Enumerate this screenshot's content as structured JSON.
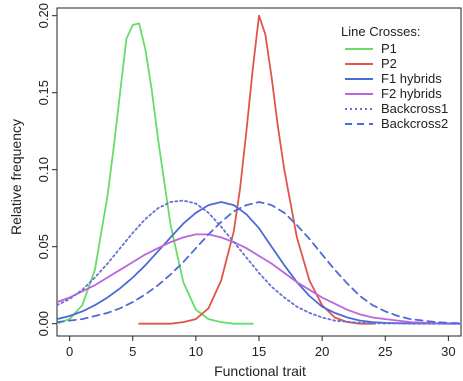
{
  "chart_data": {
    "type": "line",
    "xlabel": "Functional trait",
    "ylabel": "Relative frequency",
    "xlim": [
      -1,
      31
    ],
    "ylim": [
      -0.008,
      0.205
    ],
    "xticks": [
      0,
      5,
      10,
      15,
      20,
      25,
      30
    ],
    "xtick_labels": [
      "0",
      "5",
      "10",
      "15",
      "20",
      "25",
      "30"
    ],
    "yticks": [
      0.0,
      0.05,
      0.1,
      0.15,
      0.2
    ],
    "ytick_labels": [
      "0.00",
      "0.05",
      "0.10",
      "0.15",
      "0.20"
    ],
    "grid": false,
    "legend": {
      "title": "Line Crosses:",
      "placement": "top-right"
    },
    "series": [
      {
        "name": "P1",
        "color": "#66dd66",
        "style": "solid",
        "x": [
          -1,
          0,
          1,
          2,
          3,
          3.5,
          4,
          4.5,
          5,
          5.5,
          6,
          6.5,
          7,
          8,
          9,
          10,
          11,
          12,
          13,
          14.5
        ],
        "y": [
          0.0,
          0.003,
          0.012,
          0.035,
          0.083,
          0.115,
          0.15,
          0.185,
          0.194,
          0.195,
          0.178,
          0.152,
          0.12,
          0.064,
          0.027,
          0.009,
          0.003,
          0.001,
          0.0,
          0.0
        ]
      },
      {
        "name": "P2",
        "color": "#e0554a",
        "style": "solid",
        "x": [
          5.5,
          8,
          9,
          10,
          11,
          12,
          13,
          13.5,
          14,
          14.5,
          15,
          15.5,
          16,
          16.5,
          17,
          18,
          19,
          20,
          21,
          22,
          23,
          24.2
        ],
        "y": [
          0.0,
          0.0,
          0.001,
          0.003,
          0.01,
          0.028,
          0.06,
          0.088,
          0.125,
          0.165,
          0.2,
          0.188,
          0.16,
          0.128,
          0.1,
          0.056,
          0.028,
          0.012,
          0.004,
          0.001,
          0.0,
          0.0
        ]
      },
      {
        "name": "F1 hybrids",
        "color": "#4d6ad6",
        "style": "solid",
        "x": [
          -1,
          0,
          1,
          2,
          3,
          4,
          5,
          6,
          7,
          8,
          9,
          10,
          11,
          12,
          13,
          14,
          15,
          16,
          17,
          18,
          19,
          20,
          21,
          22,
          23,
          24,
          25,
          26,
          27,
          28,
          29,
          30,
          31
        ],
        "y": [
          0.003,
          0.005,
          0.008,
          0.012,
          0.017,
          0.023,
          0.03,
          0.038,
          0.047,
          0.056,
          0.065,
          0.072,
          0.077,
          0.079,
          0.077,
          0.071,
          0.062,
          0.05,
          0.038,
          0.027,
          0.018,
          0.011,
          0.007,
          0.004,
          0.002,
          0.001,
          0.0005,
          0.0003,
          0.0002,
          0.0001,
          0.0001,
          0.0,
          0.0
        ]
      },
      {
        "name": "F2 hybrids",
        "color": "#bb66dd",
        "style": "solid",
        "x": [
          -1,
          0,
          1,
          2,
          3,
          4,
          5,
          6,
          7,
          8,
          9,
          10,
          11,
          12,
          13,
          14,
          15,
          16,
          17,
          18,
          19,
          20,
          21,
          22,
          23,
          24,
          25,
          26,
          27,
          28,
          29,
          30,
          31
        ],
        "y": [
          0.014,
          0.017,
          0.021,
          0.025,
          0.03,
          0.035,
          0.04,
          0.045,
          0.049,
          0.053,
          0.056,
          0.058,
          0.058,
          0.056,
          0.053,
          0.049,
          0.044,
          0.039,
          0.033,
          0.027,
          0.022,
          0.017,
          0.013,
          0.009,
          0.006,
          0.004,
          0.003,
          0.002,
          0.001,
          0.0007,
          0.0004,
          0.0002,
          0.0001
        ]
      },
      {
        "name": "Backcross1",
        "color": "#6670d6",
        "style": "dotted",
        "x": [
          -1,
          0,
          1,
          2,
          3,
          4,
          5,
          6,
          7,
          8,
          9,
          10,
          11,
          12,
          13,
          14,
          15,
          16,
          17,
          18,
          19,
          20,
          21,
          22,
          23,
          24,
          25,
          26,
          27,
          28,
          29,
          30,
          31
        ],
        "y": [
          0.012,
          0.016,
          0.022,
          0.03,
          0.039,
          0.049,
          0.059,
          0.068,
          0.075,
          0.079,
          0.08,
          0.078,
          0.072,
          0.063,
          0.053,
          0.043,
          0.033,
          0.024,
          0.017,
          0.011,
          0.007,
          0.004,
          0.002,
          0.0012,
          0.0006,
          0.0003,
          0.0001,
          0.0001,
          0.0,
          0.0,
          0.0,
          0.0,
          0.0
        ]
      },
      {
        "name": "Backcross2",
        "color": "#4d6ad6",
        "style": "dashed",
        "x": [
          -1,
          0,
          1,
          2,
          3,
          4,
          5,
          6,
          7,
          8,
          9,
          10,
          11,
          12,
          13,
          14,
          15,
          16,
          17,
          18,
          19,
          20,
          21,
          22,
          23,
          24,
          25,
          26,
          27,
          28,
          29,
          30,
          31
        ],
        "y": [
          0.001,
          0.002,
          0.003,
          0.005,
          0.007,
          0.01,
          0.014,
          0.019,
          0.025,
          0.032,
          0.04,
          0.049,
          0.058,
          0.066,
          0.073,
          0.077,
          0.079,
          0.077,
          0.072,
          0.064,
          0.055,
          0.045,
          0.035,
          0.026,
          0.018,
          0.012,
          0.008,
          0.005,
          0.003,
          0.002,
          0.001,
          0.0005,
          0.0003
        ]
      }
    ]
  }
}
